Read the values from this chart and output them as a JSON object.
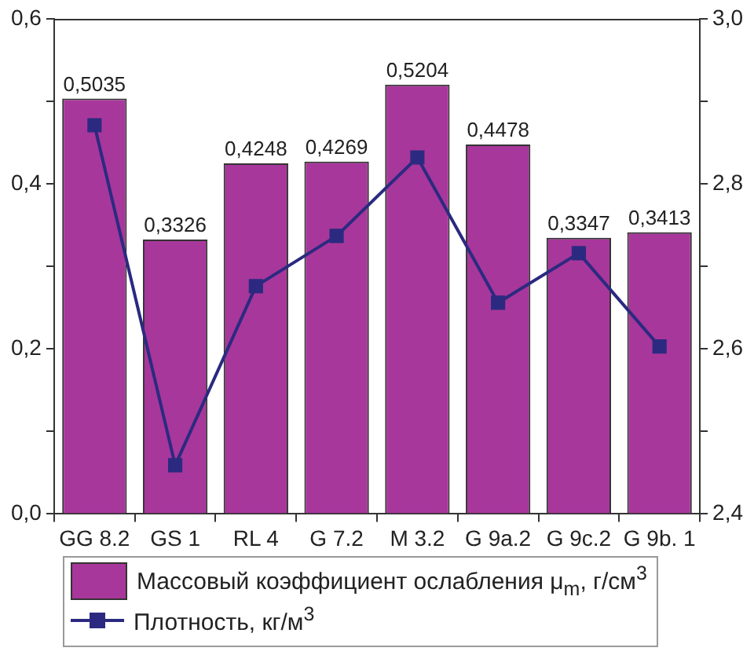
{
  "chart_data": {
    "type": "bar",
    "categories": [
      "GG 8.2",
      "GS 1",
      "RL 4",
      "G 7.2",
      "M 3.2",
      "G 9a.2",
      "G 9c.2",
      "G 9b. 1"
    ],
    "series": [
      {
        "name": "Массовый коэффициент ослабления μ$_{m}$, г/см$^{3}$",
        "color": "#a8379b",
        "values": [
          0.5035,
          0.3326,
          0.4248,
          0.4269,
          0.5204,
          0.4478,
          0.3347,
          0.3413
        ],
        "value_labels": [
          "0,5035",
          "0,3326",
          "0,4248",
          "0,4269",
          "0,5204",
          "0,4478",
          "0,3347",
          "0,3413"
        ]
      },
      {
        "name": "Плотность, кг/м$^{3}$",
        "type": "line",
        "axis": "y2",
        "color": "#2b2a80",
        "values": [
          2.871,
          2.459,
          2.676,
          2.737,
          2.832,
          2.656,
          2.716,
          2.603
        ]
      }
    ],
    "ylim": [
      0,
      0.6
    ],
    "yticks": [
      {
        "value": 0,
        "label": "0,0"
      },
      {
        "value": 0.1,
        "label": null
      },
      {
        "value": 0.2,
        "label": "0,2"
      },
      {
        "value": 0.3,
        "label": null
      },
      {
        "value": 0.4,
        "label": "0,4"
      },
      {
        "value": 0.5,
        "label": null
      },
      {
        "value": 0.6,
        "label": "0,6"
      }
    ],
    "y2lim": [
      2.4,
      3.0
    ],
    "y2ticks": [
      {
        "value": 2.4,
        "label": "2,4"
      },
      {
        "value": 2.5,
        "label": null
      },
      {
        "value": 2.6,
        "label": "2,6"
      },
      {
        "value": 2.7,
        "label": null
      },
      {
        "value": 2.8,
        "label": "2,8"
      },
      {
        "value": 2.9,
        "label": null
      },
      {
        "value": 3.0,
        "label": "3,0"
      }
    ],
    "marker": "square",
    "line_style": "solid",
    "grid": false,
    "legend": "bottom"
  }
}
